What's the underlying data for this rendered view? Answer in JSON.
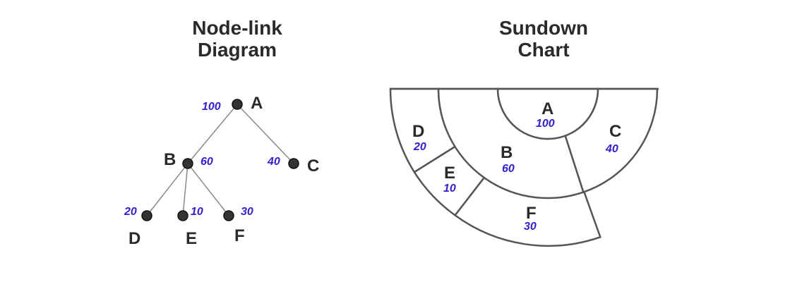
{
  "left_panel": {
    "title_line1": "Node-link",
    "title_line2": "Diagram"
  },
  "right_panel": {
    "title_line1": "Sundown",
    "title_line2": "Chart"
  },
  "tree": {
    "nodes": [
      {
        "id": "A",
        "label": "A",
        "value": "100",
        "parent": null
      },
      {
        "id": "B",
        "label": "B",
        "value": "60",
        "parent": "A"
      },
      {
        "id": "C",
        "label": "C",
        "value": "40",
        "parent": "A"
      },
      {
        "id": "D",
        "label": "D",
        "value": "20",
        "parent": "B"
      },
      {
        "id": "E",
        "label": "E",
        "value": "10",
        "parent": "B"
      },
      {
        "id": "F",
        "label": "F",
        "value": "30",
        "parent": "B"
      }
    ]
  },
  "colors": {
    "label": "#2a2a2a",
    "value": "#3322cc",
    "node": "#333333",
    "edge": "#8a8a8a",
    "outline": "#555555"
  }
}
